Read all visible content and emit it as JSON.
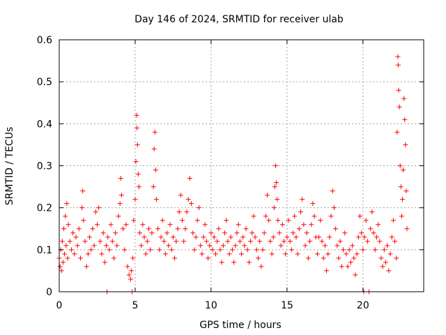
{
  "colors": {
    "series": "#ff0000",
    "grid": "#a0a0a0",
    "axis": "#000000"
  },
  "chart_data": {
    "type": "scatter",
    "title": "Day 146 of 2024, SRMTID for receiver ulab",
    "xlabel": "GPS time / hours",
    "ylabel": "SRMTID / TECUs",
    "xlim": [
      0,
      24
    ],
    "ylim": [
      0,
      0.6
    ],
    "xticks": [
      0,
      5,
      10,
      15,
      20
    ],
    "yticks": [
      0,
      0.1,
      0.2,
      0.3,
      0.4,
      0.5,
      0.6
    ],
    "xtick_labels": [
      "0",
      "5",
      "10",
      "15",
      "20"
    ],
    "ytick_labels": [
      "0",
      "0.1",
      "0.2",
      "0.3",
      "0.4",
      "0.5",
      "0.6"
    ],
    "grid": true,
    "marker": "+",
    "series": [
      {
        "name": "SRMTID",
        "points": [
          [
            0.0,
            0.08
          ],
          [
            0.05,
            0.06
          ],
          [
            0.1,
            0.1
          ],
          [
            0.15,
            0.05
          ],
          [
            0.2,
            0.12
          ],
          [
            0.25,
            0.07
          ],
          [
            0.3,
            0.15
          ],
          [
            0.35,
            0.09
          ],
          [
            0.4,
            0.18
          ],
          [
            0.45,
            0.11
          ],
          [
            0.5,
            0.21
          ],
          [
            0.55,
            0.08
          ],
          [
            0.6,
            0.16
          ],
          [
            0.7,
            0.12
          ],
          [
            0.8,
            0.1
          ],
          [
            0.9,
            0.14
          ],
          [
            1.0,
            0.09
          ],
          [
            1.1,
            0.13
          ],
          [
            1.2,
            0.11
          ],
          [
            1.3,
            0.15
          ],
          [
            1.4,
            0.08
          ],
          [
            1.5,
            0.2
          ],
          [
            1.55,
            0.24
          ],
          [
            1.6,
            0.17
          ],
          [
            1.7,
            0.12
          ],
          [
            1.8,
            0.06
          ],
          [
            1.9,
            0.09
          ],
          [
            2.0,
            0.13
          ],
          [
            2.1,
            0.1
          ],
          [
            2.2,
            0.15
          ],
          [
            2.3,
            0.11
          ],
          [
            2.4,
            0.19
          ],
          [
            2.5,
            0.16
          ],
          [
            2.6,
            0.2
          ],
          [
            2.7,
            0.12
          ],
          [
            2.8,
            0.09
          ],
          [
            2.9,
            0.14
          ],
          [
            3.0,
            0.07
          ],
          [
            3.1,
            0.11
          ],
          [
            3.15,
            0.0
          ],
          [
            3.2,
            0.13
          ],
          [
            3.3,
            0.1
          ],
          [
            3.4,
            0.16
          ],
          [
            3.5,
            0.12
          ],
          [
            3.6,
            0.08
          ],
          [
            3.7,
            0.14
          ],
          [
            3.8,
            0.11
          ],
          [
            3.9,
            0.18
          ],
          [
            4.0,
            0.21
          ],
          [
            4.05,
            0.27
          ],
          [
            4.1,
            0.23
          ],
          [
            4.2,
            0.15
          ],
          [
            4.3,
            0.1
          ],
          [
            4.4,
            0.16
          ],
          [
            4.5,
            0.06
          ],
          [
            4.6,
            0.04
          ],
          [
            4.7,
            0.03
          ],
          [
            4.75,
            0.05
          ],
          [
            4.8,
            0.0
          ],
          [
            4.85,
            0.08
          ],
          [
            4.9,
            0.17
          ],
          [
            5.0,
            0.22
          ],
          [
            5.05,
            0.31
          ],
          [
            5.1,
            0.42
          ],
          [
            5.12,
            0.39
          ],
          [
            5.15,
            0.35
          ],
          [
            5.2,
            0.28
          ],
          [
            5.25,
            0.25
          ],
          [
            5.3,
            0.14
          ],
          [
            5.4,
            0.11
          ],
          [
            5.5,
            0.16
          ],
          [
            5.6,
            0.13
          ],
          [
            5.7,
            0.09
          ],
          [
            5.8,
            0.12
          ],
          [
            5.9,
            0.15
          ],
          [
            6.0,
            0.1
          ],
          [
            6.1,
            0.14
          ],
          [
            6.2,
            0.25
          ],
          [
            6.25,
            0.34
          ],
          [
            6.3,
            0.38
          ],
          [
            6.35,
            0.29
          ],
          [
            6.4,
            0.22
          ],
          [
            6.5,
            0.15
          ],
          [
            6.6,
            0.1
          ],
          [
            6.7,
            0.13
          ],
          [
            6.8,
            0.17
          ],
          [
            6.9,
            0.12
          ],
          [
            7.0,
            0.09
          ],
          [
            7.1,
            0.14
          ],
          [
            7.2,
            0.11
          ],
          [
            7.3,
            0.16
          ],
          [
            7.4,
            0.1
          ],
          [
            7.5,
            0.13
          ],
          [
            7.6,
            0.08
          ],
          [
            7.7,
            0.12
          ],
          [
            7.8,
            0.15
          ],
          [
            7.9,
            0.19
          ],
          [
            8.0,
            0.23
          ],
          [
            8.1,
            0.17
          ],
          [
            8.2,
            0.12
          ],
          [
            8.3,
            0.15
          ],
          [
            8.4,
            0.19
          ],
          [
            8.5,
            0.22
          ],
          [
            8.6,
            0.27
          ],
          [
            8.7,
            0.21
          ],
          [
            8.8,
            0.14
          ],
          [
            8.9,
            0.1
          ],
          [
            9.0,
            0.13
          ],
          [
            9.1,
            0.17
          ],
          [
            9.2,
            0.2
          ],
          [
            9.3,
            0.11
          ],
          [
            9.4,
            0.09
          ],
          [
            9.5,
            0.13
          ],
          [
            9.6,
            0.16
          ],
          [
            9.7,
            0.12
          ],
          [
            9.8,
            0.08
          ],
          [
            9.9,
            0.11
          ],
          [
            10.0,
            0.14
          ],
          [
            10.1,
            0.1
          ],
          [
            10.2,
            0.13
          ],
          [
            10.3,
            0.09
          ],
          [
            10.4,
            0.12
          ],
          [
            10.5,
            0.15
          ],
          [
            10.6,
            0.1
          ],
          [
            10.7,
            0.07
          ],
          [
            10.8,
            0.11
          ],
          [
            10.9,
            0.14
          ],
          [
            11.0,
            0.17
          ],
          [
            11.1,
            0.12
          ],
          [
            11.2,
            0.09
          ],
          [
            11.3,
            0.13
          ],
          [
            11.4,
            0.1
          ],
          [
            11.5,
            0.07
          ],
          [
            11.6,
            0.11
          ],
          [
            11.7,
            0.14
          ],
          [
            11.8,
            0.16
          ],
          [
            11.9,
            0.12
          ],
          [
            12.0,
            0.09
          ],
          [
            12.1,
            0.13
          ],
          [
            12.2,
            0.11
          ],
          [
            12.3,
            0.15
          ],
          [
            12.4,
            0.1
          ],
          [
            12.5,
            0.07
          ],
          [
            12.6,
            0.12
          ],
          [
            12.7,
            0.14
          ],
          [
            12.8,
            0.18
          ],
          [
            12.9,
            0.13
          ],
          [
            13.0,
            0.1
          ],
          [
            13.1,
            0.08
          ],
          [
            13.2,
            0.12
          ],
          [
            13.3,
            0.06
          ],
          [
            13.4,
            0.1
          ],
          [
            13.5,
            0.14
          ],
          [
            13.6,
            0.18
          ],
          [
            13.7,
            0.23
          ],
          [
            13.8,
            0.17
          ],
          [
            13.9,
            0.12
          ],
          [
            14.0,
            0.09
          ],
          [
            14.1,
            0.13
          ],
          [
            14.15,
            0.2
          ],
          [
            14.2,
            0.25
          ],
          [
            14.25,
            0.3
          ],
          [
            14.3,
            0.26
          ],
          [
            14.35,
            0.22
          ],
          [
            14.4,
            0.17
          ],
          [
            14.5,
            0.14
          ],
          [
            14.6,
            0.11
          ],
          [
            14.7,
            0.16
          ],
          [
            14.8,
            0.12
          ],
          [
            14.9,
            0.09
          ],
          [
            15.0,
            0.13
          ],
          [
            15.1,
            0.17
          ],
          [
            15.2,
            0.12
          ],
          [
            15.3,
            0.1
          ],
          [
            15.4,
            0.14
          ],
          [
            15.5,
            0.18
          ],
          [
            15.6,
            0.13
          ],
          [
            15.7,
            0.09
          ],
          [
            15.8,
            0.15
          ],
          [
            15.9,
            0.19
          ],
          [
            16.0,
            0.22
          ],
          [
            16.1,
            0.16
          ],
          [
            16.2,
            0.11
          ],
          [
            16.3,
            0.14
          ],
          [
            16.4,
            0.08
          ],
          [
            16.5,
            0.12
          ],
          [
            16.6,
            0.16
          ],
          [
            16.7,
            0.21
          ],
          [
            16.8,
            0.18
          ],
          [
            16.9,
            0.13
          ],
          [
            17.0,
            0.09
          ],
          [
            17.1,
            0.13
          ],
          [
            17.2,
            0.17
          ],
          [
            17.3,
            0.12
          ],
          [
            17.4,
            0.08
          ],
          [
            17.5,
            0.11
          ],
          [
            17.6,
            0.05
          ],
          [
            17.7,
            0.09
          ],
          [
            17.8,
            0.13
          ],
          [
            17.9,
            0.18
          ],
          [
            18.0,
            0.24
          ],
          [
            18.1,
            0.2
          ],
          [
            18.2,
            0.15
          ],
          [
            18.3,
            0.11
          ],
          [
            18.4,
            0.08
          ],
          [
            18.5,
            0.12
          ],
          [
            18.6,
            0.06
          ],
          [
            18.7,
            0.1
          ],
          [
            18.8,
            0.14
          ],
          [
            18.9,
            0.09
          ],
          [
            19.0,
            0.06
          ],
          [
            19.1,
            0.1
          ],
          [
            19.2,
            0.07
          ],
          [
            19.3,
            0.11
          ],
          [
            19.4,
            0.08
          ],
          [
            19.5,
            0.04
          ],
          [
            19.6,
            0.09
          ],
          [
            19.7,
            0.13
          ],
          [
            19.8,
            0.18
          ],
          [
            19.9,
            0.14
          ],
          [
            20.0,
            0.1
          ],
          [
            20.05,
            0.0
          ],
          [
            20.1,
            0.13
          ],
          [
            20.2,
            0.17
          ],
          [
            20.3,
            0.12
          ],
          [
            20.4,
            0.0
          ],
          [
            20.5,
            0.15
          ],
          [
            20.6,
            0.19
          ],
          [
            20.7,
            0.14
          ],
          [
            20.8,
            0.1
          ],
          [
            20.9,
            0.13
          ],
          [
            21.0,
            0.16
          ],
          [
            21.1,
            0.12
          ],
          [
            21.2,
            0.08
          ],
          [
            21.3,
            0.06
          ],
          [
            21.4,
            0.1
          ],
          [
            21.5,
            0.07
          ],
          [
            21.6,
            0.11
          ],
          [
            21.7,
            0.05
          ],
          [
            21.8,
            0.09
          ],
          [
            21.9,
            0.13
          ],
          [
            22.0,
            0.17
          ],
          [
            22.1,
            0.12
          ],
          [
            22.2,
            0.08
          ],
          [
            22.25,
            0.38
          ],
          [
            22.3,
            0.56
          ],
          [
            22.32,
            0.54
          ],
          [
            22.35,
            0.48
          ],
          [
            22.4,
            0.44
          ],
          [
            22.45,
            0.3
          ],
          [
            22.5,
            0.25
          ],
          [
            22.55,
            0.18
          ],
          [
            22.6,
            0.22
          ],
          [
            22.65,
            0.29
          ],
          [
            22.7,
            0.46
          ],
          [
            22.75,
            0.41
          ],
          [
            22.8,
            0.35
          ],
          [
            22.85,
            0.24
          ],
          [
            22.9,
            0.15
          ]
        ]
      }
    ]
  }
}
